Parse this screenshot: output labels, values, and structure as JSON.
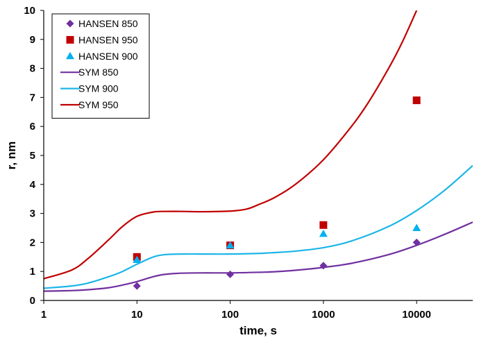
{
  "chart_data": {
    "type": "scatter",
    "xlabel": "time, s",
    "ylabel": "r, nm",
    "xscale": "log",
    "xlim": [
      1,
      40000
    ],
    "ylim": [
      0,
      10
    ],
    "x_ticks": [
      1,
      10,
      100,
      1000,
      10000
    ],
    "y_ticks": [
      0,
      1,
      2,
      3,
      4,
      5,
      6,
      7,
      8,
      9,
      10
    ],
    "grid": false,
    "legend_position": "top-left",
    "series": [
      {
        "name": "HANSEN 850",
        "kind": "points",
        "marker": "diamond",
        "color": "#7030A0",
        "x": [
          10,
          100,
          1000,
          10000
        ],
        "y": [
          0.5,
          0.9,
          1.2,
          2.0
        ]
      },
      {
        "name": "HANSEN 950",
        "kind": "points",
        "marker": "square",
        "color": "#C00000",
        "x": [
          10,
          100,
          1000,
          10000
        ],
        "y": [
          1.5,
          1.9,
          2.6,
          6.9
        ]
      },
      {
        "name": "HANSEN 900",
        "kind": "points",
        "marker": "triangle",
        "color": "#00B0F0",
        "x": [
          10,
          100,
          1000,
          10000
        ],
        "y": [
          1.4,
          1.9,
          2.3,
          2.5
        ]
      },
      {
        "name": "SYM 850",
        "kind": "line",
        "color": "#7030A0",
        "x": [
          1,
          2,
          3,
          5,
          7,
          10,
          15,
          20,
          30,
          50,
          100,
          200,
          300,
          500,
          1000,
          2000,
          5000,
          10000,
          20000,
          40000
        ],
        "y": [
          0.32,
          0.34,
          0.37,
          0.44,
          0.53,
          0.65,
          0.82,
          0.9,
          0.94,
          0.95,
          0.95,
          0.97,
          0.99,
          1.04,
          1.14,
          1.28,
          1.58,
          1.9,
          2.28,
          2.7
        ]
      },
      {
        "name": "SYM 900",
        "kind": "line",
        "color": "#1CB5E8",
        "x": [
          1,
          2,
          3,
          5,
          7,
          10,
          15,
          20,
          30,
          50,
          100,
          200,
          300,
          500,
          1000,
          2000,
          5000,
          10000,
          20000,
          40000
        ],
        "y": [
          0.42,
          0.5,
          0.6,
          0.82,
          1.0,
          1.25,
          1.5,
          1.58,
          1.6,
          1.6,
          1.6,
          1.62,
          1.65,
          1.7,
          1.82,
          2.05,
          2.55,
          3.1,
          3.8,
          4.65
        ]
      },
      {
        "name": "SYM 950",
        "kind": "line",
        "color": "#C00000",
        "x": [
          1,
          2,
          3,
          5,
          7,
          10,
          15,
          20,
          30,
          50,
          100,
          150,
          200,
          300,
          500,
          1000,
          2000,
          3000,
          5000,
          7000,
          10000
        ],
        "y": [
          0.75,
          1.05,
          1.45,
          2.1,
          2.55,
          2.9,
          3.05,
          3.07,
          3.07,
          3.06,
          3.08,
          3.15,
          3.3,
          3.55,
          4.0,
          4.85,
          6.0,
          6.8,
          8.0,
          8.9,
          10.0
        ]
      }
    ],
    "legend_order": [
      "HANSEN 850",
      "HANSEN 950",
      "HANSEN 900",
      "SYM 850",
      "SYM 900",
      "SYM 950"
    ]
  }
}
